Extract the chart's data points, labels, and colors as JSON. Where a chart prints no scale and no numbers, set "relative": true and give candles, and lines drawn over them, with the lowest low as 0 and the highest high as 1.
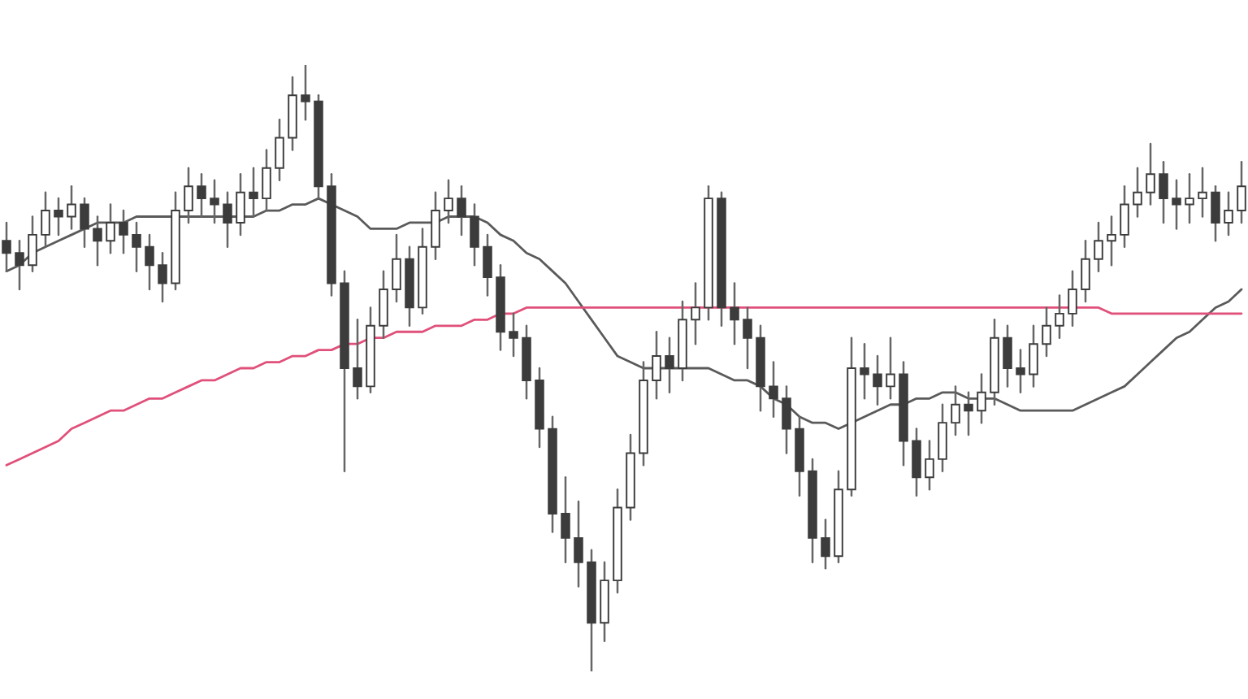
{
  "chart_data": {
    "type": "candlestick",
    "relative": true,
    "color": "#3c3c3c",
    "categories": [
      null,
      null,
      null,
      null,
      null,
      null,
      null,
      null,
      null,
      null,
      null,
      null,
      null,
      null,
      null,
      null,
      null,
      null,
      null,
      null,
      null,
      null,
      null,
      null,
      null,
      null,
      null,
      null,
      null,
      null,
      null,
      null,
      null,
      null,
      null,
      null,
      null,
      null,
      null,
      null,
      null,
      null,
      null,
      null,
      null,
      null,
      null,
      null,
      null,
      null,
      null,
      null,
      null,
      null,
      null,
      null,
      null,
      null,
      null,
      null,
      null,
      null,
      null,
      null,
      null,
      null,
      null,
      null,
      null,
      null,
      null,
      null,
      null,
      null,
      null,
      null,
      null,
      null,
      null,
      null,
      null,
      null,
      null,
      null,
      null,
      null,
      null,
      null,
      null,
      null,
      null,
      null,
      null,
      null,
      null,
      null
    ],
    "ohlc": [
      [
        0.71,
        0.74,
        0.66,
        0.69
      ],
      [
        0.69,
        0.71,
        0.63,
        0.67
      ],
      [
        0.67,
        0.75,
        0.66,
        0.72
      ],
      [
        0.72,
        0.79,
        0.7,
        0.76
      ],
      [
        0.76,
        0.78,
        0.72,
        0.75
      ],
      [
        0.75,
        0.8,
        0.73,
        0.77
      ],
      [
        0.77,
        0.78,
        0.7,
        0.73
      ],
      [
        0.73,
        0.75,
        0.67,
        0.71
      ],
      [
        0.71,
        0.77,
        0.69,
        0.74
      ],
      [
        0.74,
        0.76,
        0.69,
        0.72
      ],
      [
        0.72,
        0.74,
        0.66,
        0.7
      ],
      [
        0.7,
        0.72,
        0.63,
        0.67
      ],
      [
        0.67,
        0.69,
        0.61,
        0.64
      ],
      [
        0.64,
        0.79,
        0.63,
        0.76
      ],
      [
        0.76,
        0.83,
        0.74,
        0.8
      ],
      [
        0.8,
        0.82,
        0.75,
        0.78
      ],
      [
        0.78,
        0.81,
        0.74,
        0.77
      ],
      [
        0.77,
        0.79,
        0.7,
        0.74
      ],
      [
        0.74,
        0.82,
        0.72,
        0.79
      ],
      [
        0.79,
        0.83,
        0.75,
        0.78
      ],
      [
        0.78,
        0.86,
        0.76,
        0.83
      ],
      [
        0.83,
        0.91,
        0.81,
        0.88
      ],
      [
        0.88,
        0.98,
        0.86,
        0.95
      ],
      [
        0.95,
        1.0,
        0.91,
        0.94
      ],
      [
        0.94,
        0.95,
        0.78,
        0.8
      ],
      [
        0.8,
        0.82,
        0.62,
        0.64
      ],
      [
        0.64,
        0.66,
        0.33,
        0.5
      ],
      [
        0.5,
        0.58,
        0.45,
        0.47
      ],
      [
        0.47,
        0.6,
        0.46,
        0.57
      ],
      [
        0.57,
        0.66,
        0.55,
        0.63
      ],
      [
        0.63,
        0.72,
        0.61,
        0.68
      ],
      [
        0.68,
        0.7,
        0.57,
        0.6
      ],
      [
        0.6,
        0.73,
        0.59,
        0.7
      ],
      [
        0.7,
        0.79,
        0.68,
        0.76
      ],
      [
        0.76,
        0.81,
        0.74,
        0.78
      ],
      [
        0.78,
        0.8,
        0.72,
        0.75
      ],
      [
        0.75,
        0.77,
        0.67,
        0.7
      ],
      [
        0.7,
        0.72,
        0.62,
        0.65
      ],
      [
        0.65,
        0.67,
        0.53,
        0.56
      ],
      [
        0.56,
        0.59,
        0.52,
        0.55
      ],
      [
        0.55,
        0.57,
        0.45,
        0.48
      ],
      [
        0.48,
        0.5,
        0.37,
        0.4
      ],
      [
        0.4,
        0.42,
        0.23,
        0.26
      ],
      [
        0.26,
        0.32,
        0.18,
        0.22
      ],
      [
        0.22,
        0.28,
        0.14,
        0.18
      ],
      [
        0.18,
        0.2,
        0.0,
        0.08
      ],
      [
        0.08,
        0.18,
        0.05,
        0.15
      ],
      [
        0.15,
        0.3,
        0.13,
        0.27
      ],
      [
        0.27,
        0.39,
        0.25,
        0.36
      ],
      [
        0.36,
        0.51,
        0.34,
        0.48
      ],
      [
        0.48,
        0.56,
        0.45,
        0.52
      ],
      [
        0.52,
        0.55,
        0.46,
        0.5
      ],
      [
        0.5,
        0.61,
        0.48,
        0.58
      ],
      [
        0.58,
        0.64,
        0.54,
        0.6
      ],
      [
        0.6,
        0.8,
        0.58,
        0.78
      ],
      [
        0.78,
        0.79,
        0.57,
        0.6
      ],
      [
        0.6,
        0.64,
        0.54,
        0.58
      ],
      [
        0.58,
        0.6,
        0.5,
        0.55
      ],
      [
        0.55,
        0.57,
        0.43,
        0.47
      ],
      [
        0.47,
        0.51,
        0.42,
        0.45
      ],
      [
        0.45,
        0.47,
        0.36,
        0.4
      ],
      [
        0.4,
        0.42,
        0.29,
        0.33
      ],
      [
        0.33,
        0.35,
        0.18,
        0.22
      ],
      [
        0.22,
        0.25,
        0.17,
        0.19
      ],
      [
        0.19,
        0.33,
        0.18,
        0.3
      ],
      [
        0.3,
        0.55,
        0.29,
        0.5
      ],
      [
        0.5,
        0.54,
        0.45,
        0.49
      ],
      [
        0.49,
        0.52,
        0.44,
        0.47
      ],
      [
        0.47,
        0.55,
        0.45,
        0.49
      ],
      [
        0.49,
        0.51,
        0.34,
        0.38
      ],
      [
        0.38,
        0.4,
        0.29,
        0.32
      ],
      [
        0.32,
        0.38,
        0.3,
        0.35
      ],
      [
        0.35,
        0.44,
        0.33,
        0.41
      ],
      [
        0.41,
        0.47,
        0.39,
        0.44
      ],
      [
        0.44,
        0.46,
        0.39,
        0.43
      ],
      [
        0.43,
        0.49,
        0.41,
        0.46
      ],
      [
        0.46,
        0.58,
        0.44,
        0.55
      ],
      [
        0.55,
        0.57,
        0.47,
        0.5
      ],
      [
        0.5,
        0.53,
        0.46,
        0.49
      ],
      [
        0.49,
        0.57,
        0.47,
        0.54
      ],
      [
        0.54,
        0.6,
        0.52,
        0.57
      ],
      [
        0.57,
        0.62,
        0.55,
        0.59
      ],
      [
        0.59,
        0.66,
        0.57,
        0.63
      ],
      [
        0.63,
        0.71,
        0.61,
        0.68
      ],
      [
        0.68,
        0.74,
        0.66,
        0.71
      ],
      [
        0.71,
        0.75,
        0.67,
        0.72
      ],
      [
        0.72,
        0.8,
        0.7,
        0.77
      ],
      [
        0.77,
        0.83,
        0.75,
        0.79
      ],
      [
        0.79,
        0.87,
        0.77,
        0.82
      ],
      [
        0.82,
        0.84,
        0.74,
        0.78
      ],
      [
        0.78,
        0.81,
        0.73,
        0.77
      ],
      [
        0.77,
        0.82,
        0.74,
        0.78
      ],
      [
        0.78,
        0.83,
        0.75,
        0.79
      ],
      [
        0.79,
        0.8,
        0.71,
        0.74
      ],
      [
        0.74,
        0.79,
        0.72,
        0.76
      ],
      [
        0.76,
        0.84,
        0.74,
        0.8
      ]
    ],
    "series": [
      {
        "type": "line",
        "color": "#5a5a5a",
        "values": [
          0.66,
          0.67,
          0.69,
          0.7,
          0.71,
          0.72,
          0.73,
          0.74,
          0.74,
          0.74,
          0.75,
          0.75,
          0.75,
          0.75,
          0.75,
          0.75,
          0.75,
          0.75,
          0.75,
          0.75,
          0.76,
          0.76,
          0.77,
          0.77,
          0.78,
          0.77,
          0.76,
          0.75,
          0.73,
          0.73,
          0.73,
          0.74,
          0.74,
          0.74,
          0.75,
          0.75,
          0.75,
          0.74,
          0.72,
          0.71,
          0.69,
          0.68,
          0.66,
          0.64,
          0.61,
          0.58,
          0.55,
          0.52,
          0.51,
          0.5,
          0.5,
          0.5,
          0.5,
          0.5,
          0.5,
          0.49,
          0.48,
          0.48,
          0.47,
          0.45,
          0.44,
          0.42,
          0.41,
          0.41,
          0.4,
          0.41,
          0.42,
          0.43,
          0.44,
          0.44,
          0.45,
          0.45,
          0.46,
          0.46,
          0.45,
          0.45,
          0.45,
          0.44,
          0.43,
          0.43,
          0.43,
          0.43,
          0.43,
          0.44,
          0.45,
          0.46,
          0.47,
          0.49,
          0.51,
          0.53,
          0.55,
          0.56,
          0.58,
          0.6,
          0.61,
          0.63
        ]
      },
      {
        "type": "line",
        "color": "#e0507a",
        "values": [
          0.34,
          0.35,
          0.36,
          0.37,
          0.38,
          0.4,
          0.41,
          0.42,
          0.43,
          0.43,
          0.44,
          0.45,
          0.45,
          0.46,
          0.47,
          0.48,
          0.48,
          0.49,
          0.5,
          0.5,
          0.51,
          0.51,
          0.52,
          0.52,
          0.53,
          0.53,
          0.54,
          0.54,
          0.55,
          0.55,
          0.56,
          0.56,
          0.56,
          0.57,
          0.57,
          0.57,
          0.58,
          0.58,
          0.59,
          0.59,
          0.6,
          0.6,
          0.6,
          0.6,
          0.6,
          0.6,
          0.6,
          0.6,
          0.6,
          0.6,
          0.6,
          0.6,
          0.6,
          0.6,
          0.6,
          0.6,
          0.6,
          0.6,
          0.6,
          0.6,
          0.6,
          0.6,
          0.6,
          0.6,
          0.6,
          0.6,
          0.6,
          0.6,
          0.6,
          0.6,
          0.6,
          0.6,
          0.6,
          0.6,
          0.6,
          0.6,
          0.6,
          0.6,
          0.6,
          0.6,
          0.6,
          0.6,
          0.6,
          0.6,
          0.6,
          0.59,
          0.59,
          0.59,
          0.59,
          0.59,
          0.59,
          0.59,
          0.59,
          0.59,
          0.59,
          0.59
        ]
      }
    ]
  }
}
